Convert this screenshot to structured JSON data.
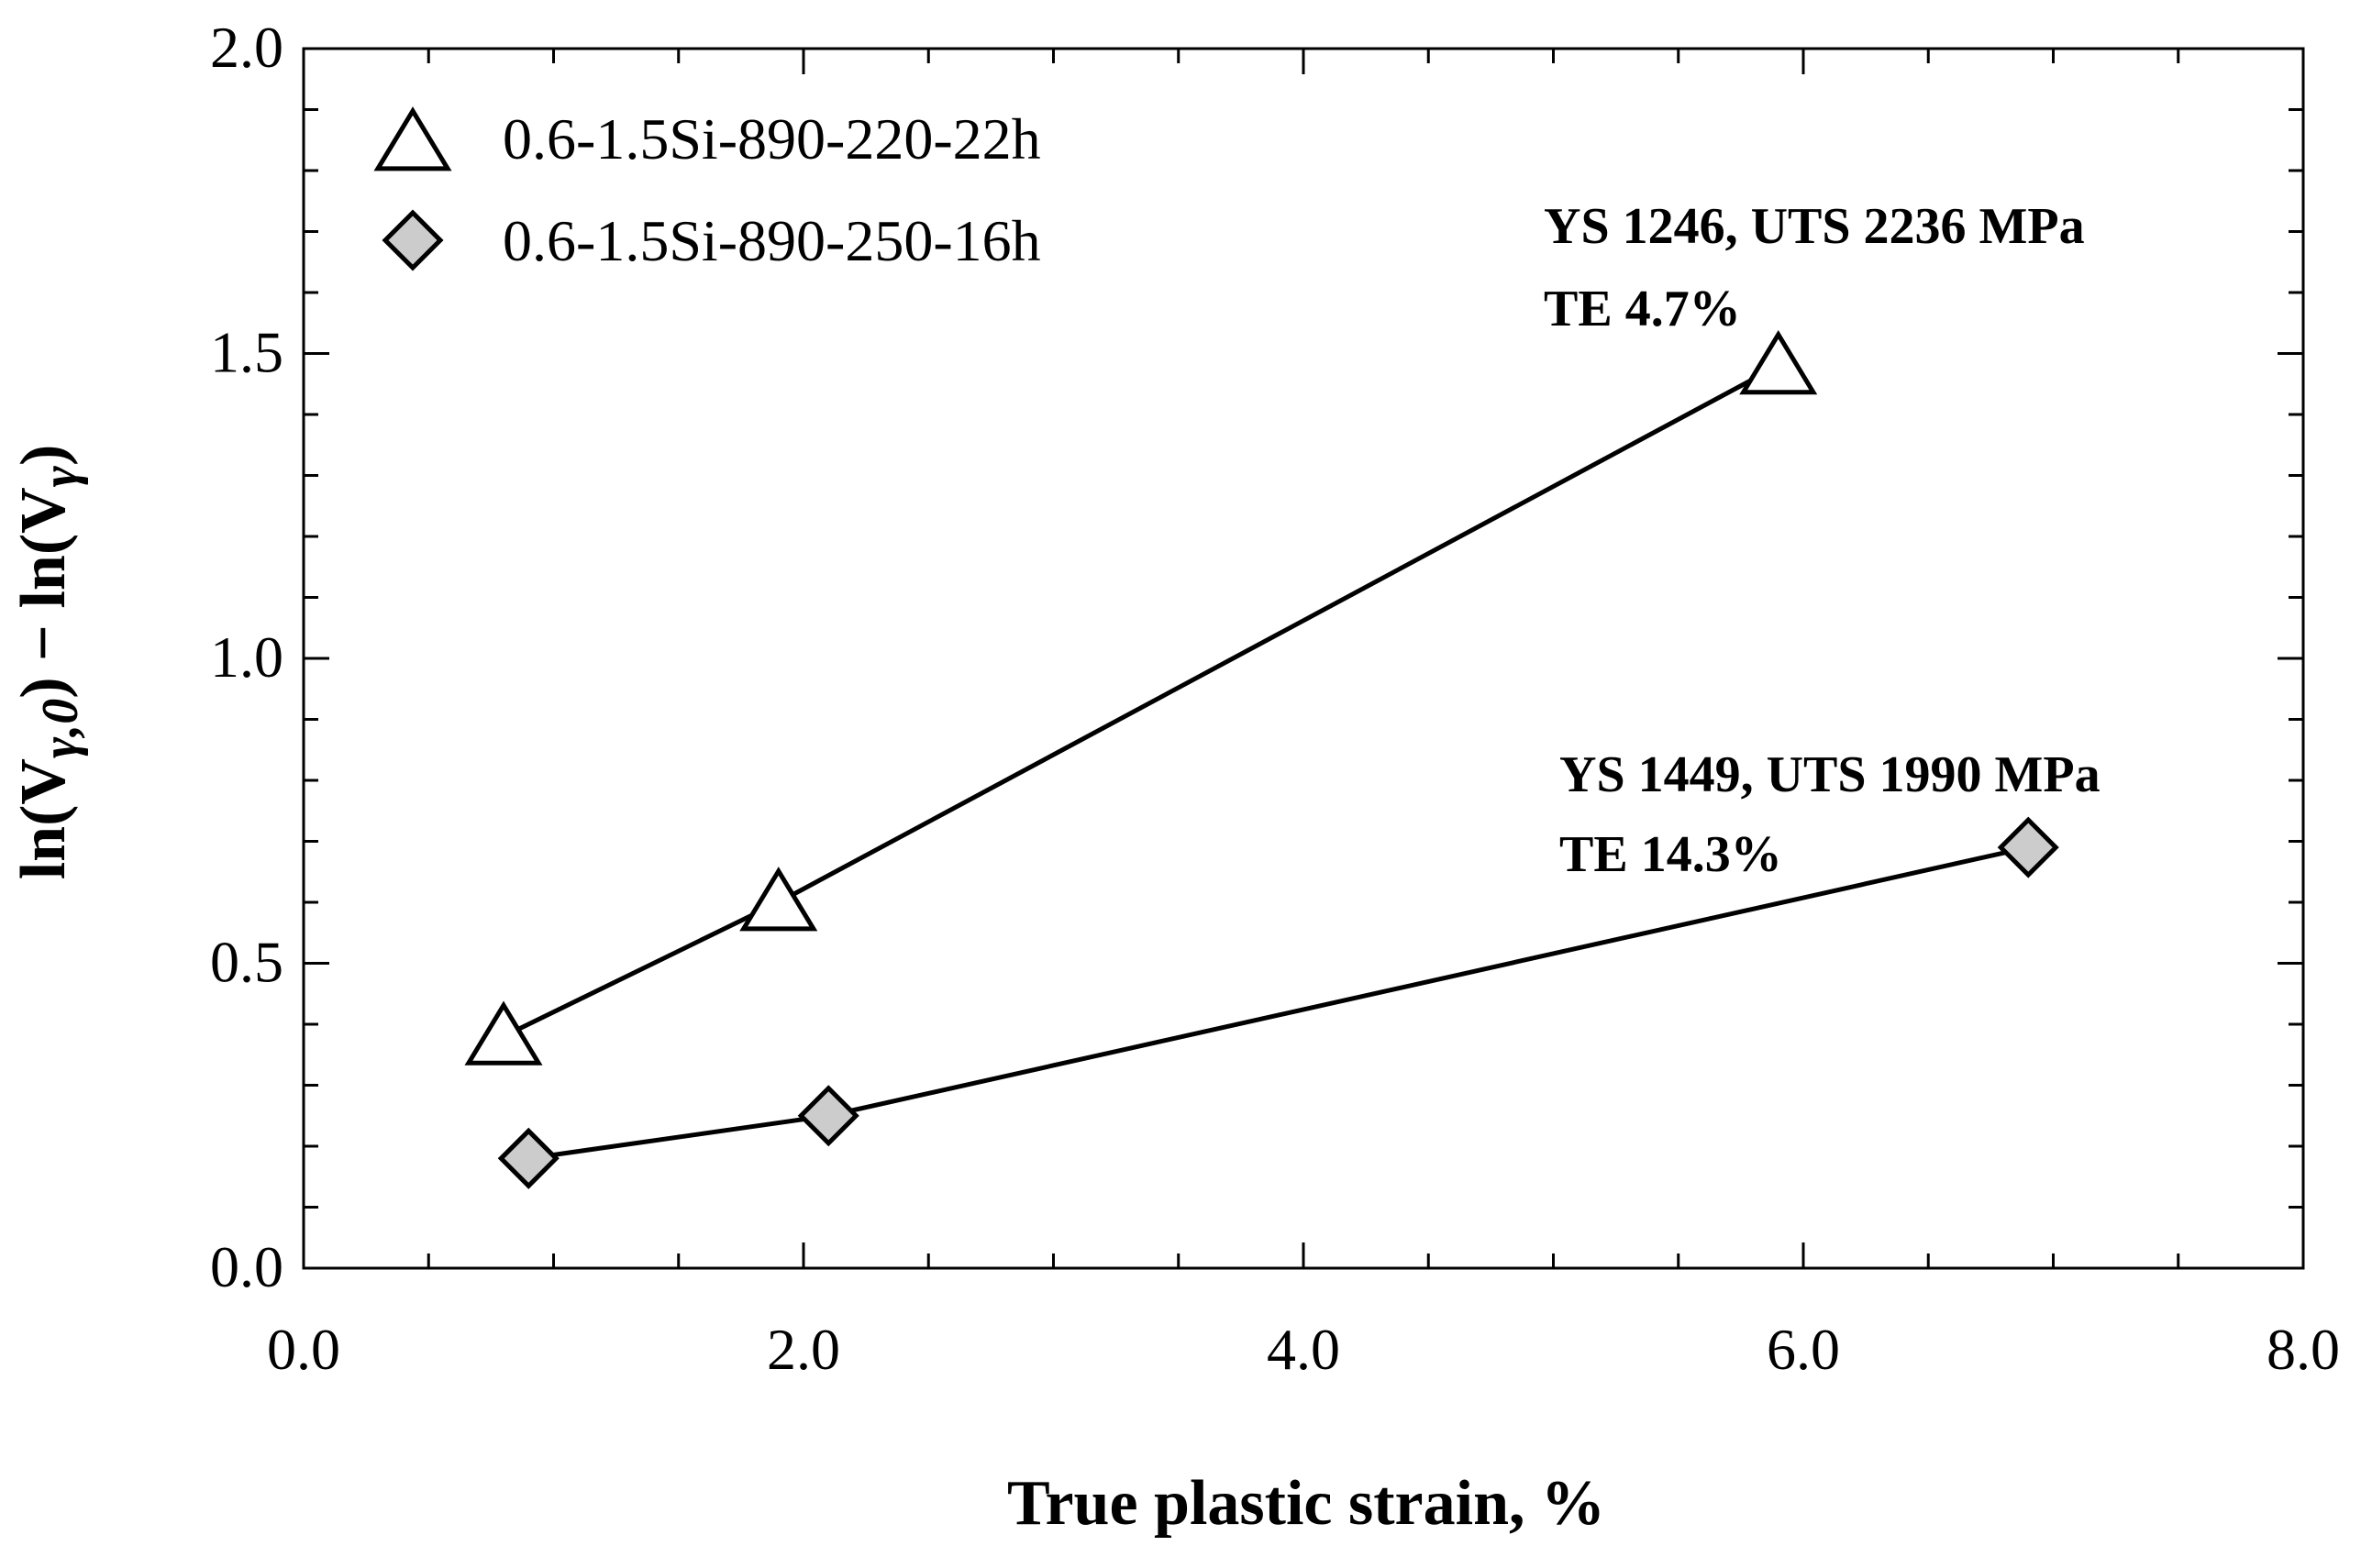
{
  "chart_data": {
    "type": "line",
    "xlabel": "True plastic strain, %",
    "ylabel": {
      "base": "ln(V",
      "sub1": "γ,0",
      "mid": ") − ln(V",
      "sub2": "γ",
      "end": ")"
    },
    "xlim": [
      0,
      8
    ],
    "ylim": [
      0,
      2
    ],
    "x_ticks": [
      {
        "value": 0,
        "label": "0.0"
      },
      {
        "value": 2,
        "label": "2.0"
      },
      {
        "value": 4,
        "label": "4.0"
      },
      {
        "value": 6,
        "label": "6.0"
      },
      {
        "value": 8,
        "label": "8.0"
      }
    ],
    "y_ticks": [
      {
        "value": 0,
        "label": "0.0"
      },
      {
        "value": 0.5,
        "label": "0.5"
      },
      {
        "value": 1,
        "label": "1.0"
      },
      {
        "value": 1.5,
        "label": "1.5"
      },
      {
        "value": 2,
        "label": "2.0"
      }
    ],
    "x_minor_step": 0.5,
    "y_minor_step": 0.1,
    "grid": false,
    "legend_position": "top-left",
    "series": [
      {
        "name": "0.6-1.5Si-890-220-22h",
        "marker": "triangle",
        "fill": "#ffffff",
        "x": [
          0.8,
          1.9,
          5.9
        ],
        "y": [
          0.38,
          0.6,
          1.48
        ]
      },
      {
        "name": "0.6-1.5Si-890-250-16h",
        "marker": "diamond",
        "fill": "#cccccc",
        "x": [
          0.9,
          2.1,
          6.9
        ],
        "y": [
          0.18,
          0.25,
          0.69
        ]
      }
    ],
    "annotations": [
      {
        "line1": "YS 1246, UTS 2236 MPa",
        "line2": "TE 4.7%",
        "series": 0
      },
      {
        "line1": "YS 1449, UTS 1990 MPa",
        "line2": "TE 14.3%",
        "series": 1
      }
    ]
  }
}
